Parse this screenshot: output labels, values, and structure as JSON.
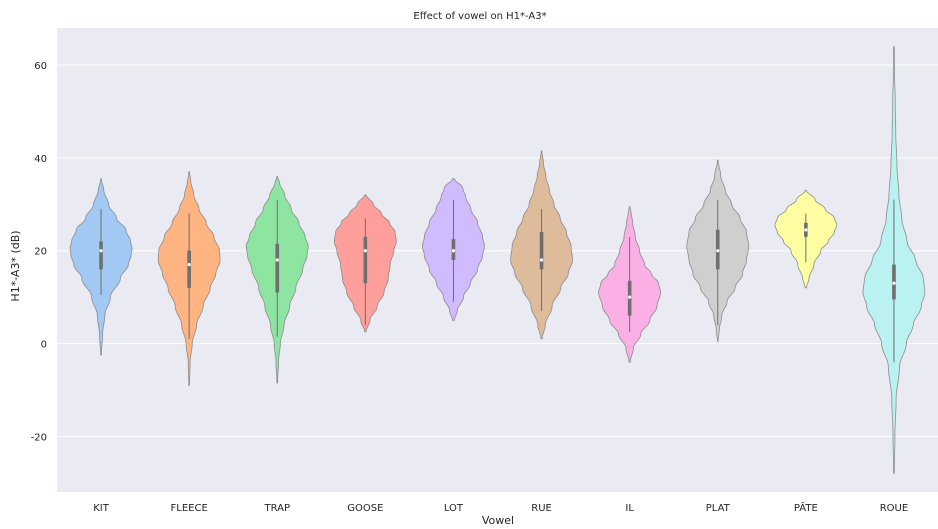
{
  "chart_data": {
    "type": "violin",
    "title": "Effect of vowel on H1*-A3*",
    "xlabel": "Vowel",
    "ylabel": "H1*-A3* (dB)",
    "ylim": [
      -32,
      68
    ],
    "yticks": [
      -20,
      0,
      20,
      40,
      60
    ],
    "grid": true,
    "colors": {
      "background": "#eaeaf2",
      "grid": "#ffffff",
      "outline": "#8c8c8c",
      "box": "#6e6e6e"
    },
    "categories": [
      "KIT",
      "FLEECE",
      "TRAP",
      "GOOSE",
      "LOT",
      "RUE",
      "IL",
      "PLAT",
      "PÂTE",
      "ROUE"
    ],
    "series": [
      {
        "category": "KIT",
        "color": "#a1c9f4",
        "min": -2.5,
        "max": 35.5,
        "q1": 16,
        "median": 20,
        "q3": 22,
        "whisker_low": 10.5,
        "whisker_high": 29,
        "profile": [
          [
            -2.5,
            0.01
          ],
          [
            2,
            0.05
          ],
          [
            6,
            0.12
          ],
          [
            10,
            0.3
          ],
          [
            14,
            0.62
          ],
          [
            17,
            0.88
          ],
          [
            19,
            0.97
          ],
          [
            20.5,
            1.0
          ],
          [
            22,
            0.95
          ],
          [
            24.5,
            0.8
          ],
          [
            27,
            0.5
          ],
          [
            30,
            0.24
          ],
          [
            33,
            0.09
          ],
          [
            35.5,
            0.01
          ]
        ]
      },
      {
        "category": "FLEECE",
        "color": "#ffb482",
        "min": -9,
        "max": 37,
        "q1": 12,
        "median": 17,
        "q3": 20,
        "whisker_low": 1,
        "whisker_high": 28,
        "profile": [
          [
            -9,
            0.01
          ],
          [
            -4,
            0.03
          ],
          [
            0,
            0.1
          ],
          [
            4,
            0.24
          ],
          [
            8,
            0.45
          ],
          [
            12,
            0.68
          ],
          [
            15,
            0.86
          ],
          [
            18,
            1.0
          ],
          [
            20,
            0.98
          ],
          [
            23,
            0.8
          ],
          [
            26,
            0.55
          ],
          [
            29,
            0.32
          ],
          [
            32,
            0.15
          ],
          [
            35,
            0.05
          ],
          [
            37,
            0.01
          ]
        ]
      },
      {
        "category": "TRAP",
        "color": "#8de5a1",
        "min": -8.5,
        "max": 36,
        "q1": 11,
        "median": 18,
        "q3": 21.5,
        "whisker_low": 1.5,
        "whisker_high": 31,
        "profile": [
          [
            -8.5,
            0.01
          ],
          [
            -4,
            0.04
          ],
          [
            0,
            0.1
          ],
          [
            4,
            0.22
          ],
          [
            8,
            0.4
          ],
          [
            12,
            0.6
          ],
          [
            16,
            0.82
          ],
          [
            19,
            0.96
          ],
          [
            21,
            1.0
          ],
          [
            23,
            0.9
          ],
          [
            26,
            0.7
          ],
          [
            29,
            0.45
          ],
          [
            32,
            0.24
          ],
          [
            34.5,
            0.08
          ],
          [
            36,
            0.01
          ]
        ]
      },
      {
        "category": "GOOSE",
        "color": "#ff9f9b",
        "min": 2.5,
        "max": 32,
        "q1": 13,
        "median": 20,
        "q3": 23,
        "whisker_low": 4,
        "whisker_high": 27,
        "profile": [
          [
            2.5,
            0.02
          ],
          [
            5,
            0.15
          ],
          [
            8,
            0.38
          ],
          [
            11,
            0.6
          ],
          [
            14,
            0.74
          ],
          [
            17,
            0.8
          ],
          [
            20,
            0.92
          ],
          [
            22,
            1.0
          ],
          [
            24,
            0.96
          ],
          [
            26,
            0.78
          ],
          [
            28,
            0.52
          ],
          [
            30,
            0.26
          ],
          [
            32,
            0.03
          ]
        ]
      },
      {
        "category": "LOT",
        "color": "#d0bbff",
        "min": 5,
        "max": 35.5,
        "q1": 18,
        "median": 20,
        "q3": 22.5,
        "whisker_low": 9,
        "whisker_high": 31,
        "profile": [
          [
            5,
            0.03
          ],
          [
            7,
            0.12
          ],
          [
            10,
            0.32
          ],
          [
            13,
            0.55
          ],
          [
            16,
            0.78
          ],
          [
            19,
            0.94
          ],
          [
            21,
            1.0
          ],
          [
            23,
            0.94
          ],
          [
            26,
            0.78
          ],
          [
            29,
            0.56
          ],
          [
            31.5,
            0.4
          ],
          [
            33.5,
            0.3
          ],
          [
            35.5,
            0.03
          ]
        ]
      },
      {
        "category": "RUE",
        "color": "#debb9b",
        "min": 1,
        "max": 41.5,
        "q1": 16,
        "median": 18,
        "q3": 24,
        "whisker_low": 7,
        "whisker_high": 29,
        "profile": [
          [
            1,
            0.02
          ],
          [
            4,
            0.12
          ],
          [
            8,
            0.34
          ],
          [
            12,
            0.62
          ],
          [
            15,
            0.86
          ],
          [
            18,
            1.0
          ],
          [
            21,
            0.95
          ],
          [
            24,
            0.8
          ],
          [
            27,
            0.6
          ],
          [
            30,
            0.4
          ],
          [
            33,
            0.25
          ],
          [
            36,
            0.14
          ],
          [
            39,
            0.06
          ],
          [
            41.5,
            0.01
          ]
        ]
      },
      {
        "category": "IL",
        "color": "#fab0e4",
        "min": -4,
        "max": 29.5,
        "q1": 6,
        "median": 10,
        "q3": 13.5,
        "whisker_low": 2.5,
        "whisker_high": 23,
        "profile": [
          [
            -4,
            0.02
          ],
          [
            -1,
            0.12
          ],
          [
            2,
            0.36
          ],
          [
            5,
            0.65
          ],
          [
            8,
            0.88
          ],
          [
            11,
            1.0
          ],
          [
            13,
            0.93
          ],
          [
            15,
            0.7
          ],
          [
            17,
            0.48
          ],
          [
            20,
            0.32
          ],
          [
            23,
            0.18
          ],
          [
            26,
            0.1
          ],
          [
            28,
            0.05
          ],
          [
            29.5,
            0.01
          ]
        ]
      },
      {
        "category": "PLAT",
        "color": "#cfcfcf",
        "min": 0.5,
        "max": 39.5,
        "q1": 16,
        "median": 20,
        "q3": 24.5,
        "whisker_low": 4,
        "whisker_high": 31,
        "profile": [
          [
            0.5,
            0.01
          ],
          [
            3,
            0.05
          ],
          [
            6,
            0.13
          ],
          [
            9,
            0.3
          ],
          [
            12,
            0.56
          ],
          [
            15,
            0.8
          ],
          [
            18,
            0.93
          ],
          [
            21,
            1.0
          ],
          [
            24,
            0.93
          ],
          [
            27,
            0.72
          ],
          [
            30,
            0.45
          ],
          [
            33,
            0.24
          ],
          [
            36,
            0.1
          ],
          [
            39.5,
            0.01
          ]
        ]
      },
      {
        "category": "PÂTE",
        "color": "#fffea3",
        "min": 12,
        "max": 33,
        "q1": 23,
        "median": 24.5,
        "q3": 26,
        "whisker_low": 17.5,
        "whisker_high": 28,
        "profile": [
          [
            12,
            0.02
          ],
          [
            14,
            0.1
          ],
          [
            17,
            0.26
          ],
          [
            20,
            0.48
          ],
          [
            22,
            0.72
          ],
          [
            24,
            0.92
          ],
          [
            25.5,
            1.0
          ],
          [
            27,
            0.92
          ],
          [
            29,
            0.62
          ],
          [
            31,
            0.3
          ],
          [
            33,
            0.02
          ]
        ]
      },
      {
        "category": "ROUE",
        "color": "#b9f2f0",
        "min": -28,
        "max": 64,
        "q1": 9.5,
        "median": 13,
        "q3": 17,
        "whisker_low": -4,
        "whisker_high": 31,
        "profile": [
          [
            -28,
            0.01
          ],
          [
            -20,
            0.03
          ],
          [
            -12,
            0.07
          ],
          [
            -5,
            0.18
          ],
          [
            0,
            0.4
          ],
          [
            4,
            0.62
          ],
          [
            8,
            0.88
          ],
          [
            11,
            1.0
          ],
          [
            14,
            0.95
          ],
          [
            18,
            0.7
          ],
          [
            22,
            0.42
          ],
          [
            27,
            0.25
          ],
          [
            32,
            0.16
          ],
          [
            38,
            0.1
          ],
          [
            45,
            0.06
          ],
          [
            52,
            0.04
          ],
          [
            58,
            0.02
          ],
          [
            64,
            0.01
          ]
        ]
      }
    ]
  }
}
